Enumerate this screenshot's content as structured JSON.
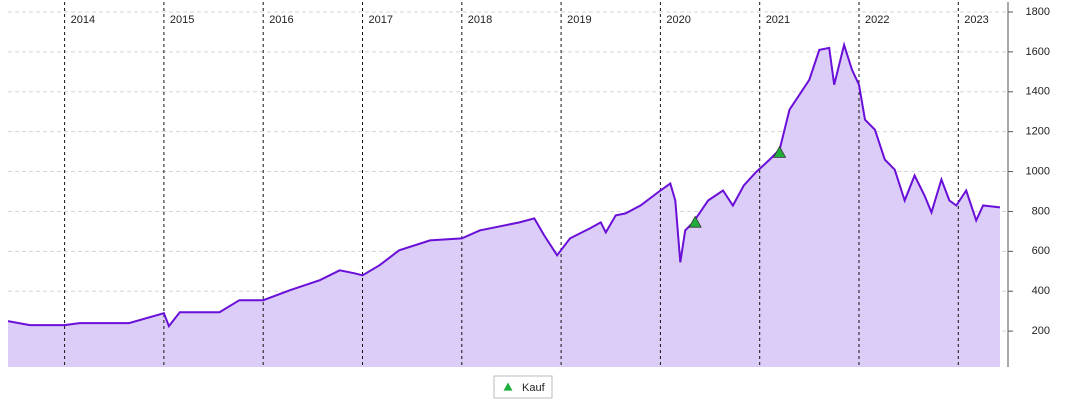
{
  "chart_data": {
    "type": "area",
    "x": [
      2013.43,
      2013.65,
      2014.0,
      2014.15,
      2014.65,
      2015.0,
      2015.05,
      2015.16,
      2015.56,
      2015.76,
      2016.0,
      2016.27,
      2016.57,
      2016.77,
      2016.92,
      2017.0,
      2017.17,
      2017.37,
      2017.68,
      2018.0,
      2018.18,
      2018.58,
      2018.73,
      2018.83,
      2018.96,
      2019.09,
      2019.29,
      2019.4,
      2019.45,
      2019.55,
      2019.65,
      2019.8,
      2020.0,
      2020.1,
      2020.15,
      2020.2,
      2020.25,
      2020.33,
      2020.48,
      2020.63,
      2020.73,
      2020.84,
      2020.96,
      2021.1,
      2021.2,
      2021.3,
      2021.4,
      2021.5,
      2021.6,
      2021.7,
      2021.75,
      2021.85,
      2021.93,
      2022.0,
      2022.06,
      2022.16,
      2022.26,
      2022.36,
      2022.46,
      2022.56,
      2022.66,
      2022.73,
      2022.83,
      2022.91,
      2022.98,
      2023.08,
      2023.18,
      2023.25,
      2023.42
    ],
    "values": [
      250,
      230,
      230,
      240,
      240,
      290,
      225,
      295,
      295,
      355,
      355,
      405,
      455,
      505,
      490,
      480,
      530,
      605,
      655,
      665,
      705,
      745,
      765,
      680,
      580,
      665,
      715,
      745,
      695,
      780,
      790,
      830,
      905,
      940,
      855,
      545,
      705,
      745,
      855,
      905,
      830,
      930,
      995,
      1060,
      1110,
      1310,
      1385,
      1460,
      1610,
      1620,
      1435,
      1635,
      1510,
      1435,
      1260,
      1210,
      1060,
      1010,
      855,
      980,
      880,
      795,
      960,
      855,
      830,
      905,
      755,
      830,
      820
    ],
    "color": "#6a0fd8",
    "fill_color": "#dccdf8",
    "markers": {
      "name": "Kauf",
      "color": "#1fae3a",
      "x": [
        2020.35,
        2021.2
      ],
      "values": [
        745,
        1095
      ]
    },
    "xlim": [
      2013.43,
      2023.42
    ],
    "xticks": [
      2014,
      2015,
      2016,
      2017,
      2018,
      2019,
      2020,
      2021,
      2022,
      2023
    ],
    "ylim": [
      20,
      1800
    ],
    "yticks": [
      200,
      400,
      600,
      800,
      1000,
      1200,
      1400,
      1600,
      1800
    ],
    "grid": true
  }
}
